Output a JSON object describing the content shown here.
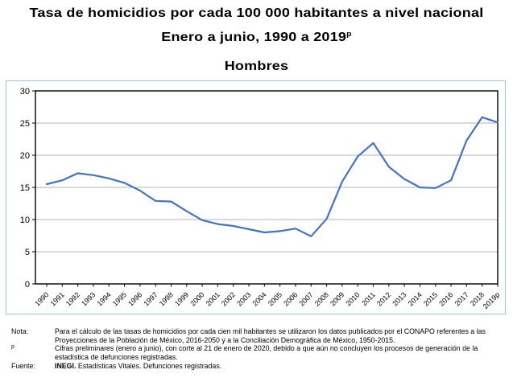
{
  "header": {
    "title": "Tasa de homicidios por cada 100 000 habitantes a nivel nacional",
    "subtitle_main": "Enero a junio, 1990 a 2019",
    "subtitle_sup": "p"
  },
  "chart_data": {
    "type": "line",
    "title": "Hombres",
    "categories": [
      "1990",
      "1991",
      "1992",
      "1993",
      "1994",
      "1995",
      "1996",
      "1997",
      "1998",
      "1999",
      "2000",
      "2001",
      "2002",
      "2003",
      "2004",
      "2005",
      "2006",
      "2007",
      "2008",
      "2009",
      "2010",
      "2011",
      "2012",
      "2013",
      "2014",
      "2015",
      "2016",
      "2017",
      "2018",
      "2019p"
    ],
    "values": [
      15.5,
      16.1,
      17.2,
      16.9,
      16.4,
      15.7,
      14.5,
      12.9,
      12.8,
      11.3,
      9.9,
      9.3,
      9.0,
      8.5,
      8.0,
      8.2,
      8.6,
      7.4,
      10.1,
      15.9,
      19.8,
      21.9,
      18.2,
      16.3,
      15.0,
      14.9,
      16.1,
      22.3,
      25.9,
      25.1
    ],
    "xlabel": "",
    "ylabel": "",
    "ylim": [
      0,
      30
    ],
    "ytick_step": 5,
    "grid": "horizontal",
    "legend": "none",
    "line_color": "#4472C4",
    "gridline_color": "#b3b3b3",
    "plot_border_color": "#000000",
    "chart_border_color": "#9DC3E6"
  },
  "notes": {
    "nota_label": "Nota:",
    "nota_text": "Para el cálculo de las tasas de homicidios por cada cien mil habitantes se utilizaron los datos publicados por el CONAPO referentes a las Proyecciones de la Población de México, 2016-2050 y a la Conciliación Demográfica de México, 1950-2015.",
    "prelim_label": "p",
    "prelim_text": "Cifras preliminares (enero a junio), con corte al 21 de enero de 2020, debido a que aún no concluyen los procesos de generación de la estadística de defunciones registradas.",
    "fuente_label": "Fuente:",
    "fuente_bold": "INEGI.",
    "fuente_text": " Estadísticas Vitales. Defunciones registradas."
  }
}
